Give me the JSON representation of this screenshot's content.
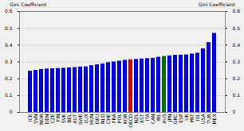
{
  "chart_data": {
    "type": "bar",
    "ylabel": "Gini Coefficient",
    "y2label": "Gini Coefficient",
    "categories": [
      "ICE",
      "SVN",
      "NOR",
      "DEN",
      "CZE",
      "FIN",
      "SVK",
      "BEL",
      "AUT",
      "SWE",
      "LUX",
      "HUN",
      "DEU",
      "NLD",
      "CHE",
      "FRA",
      "POL",
      "KOR",
      "OECD",
      "NZL",
      "EST",
      "ITA",
      "CAN",
      "IRL",
      "AUS",
      "JPN",
      "GRC",
      "ESP",
      "UK",
      "PRT",
      "ISL",
      "USA",
      "TUR",
      "MEX"
    ],
    "values": [
      0.245,
      0.25,
      0.255,
      0.258,
      0.259,
      0.261,
      0.263,
      0.265,
      0.267,
      0.27,
      0.271,
      0.278,
      0.283,
      0.288,
      0.296,
      0.3,
      0.305,
      0.31,
      0.313,
      0.315,
      0.318,
      0.32,
      0.322,
      0.328,
      0.333,
      0.336,
      0.34,
      0.341,
      0.342,
      0.347,
      0.352,
      0.378,
      0.415,
      0.47
    ],
    "colors": [
      "#0000ee",
      "#0000ee",
      "#0000ee",
      "#0000ee",
      "#0000ee",
      "#0000ee",
      "#0000ee",
      "#0000ee",
      "#0000ee",
      "#0000ee",
      "#0000ee",
      "#0000ee",
      "#0000ee",
      "#0000ee",
      "#0000ee",
      "#0000ee",
      "#0000ee",
      "#0000ee",
      "#dd0000",
      "#0000ee",
      "#0000ee",
      "#0000ee",
      "#0000ee",
      "#0000ee",
      "#007700",
      "#0000ee",
      "#0000ee",
      "#0000ee",
      "#0000ee",
      "#0000ee",
      "#0000ee",
      "#0000ee",
      "#0000ee",
      "#0000ee"
    ],
    "ylim": [
      0,
      0.6
    ],
    "yticks": [
      0,
      0.1,
      0.2,
      0.3,
      0.4,
      0.5,
      0.6
    ],
    "grid": true
  }
}
